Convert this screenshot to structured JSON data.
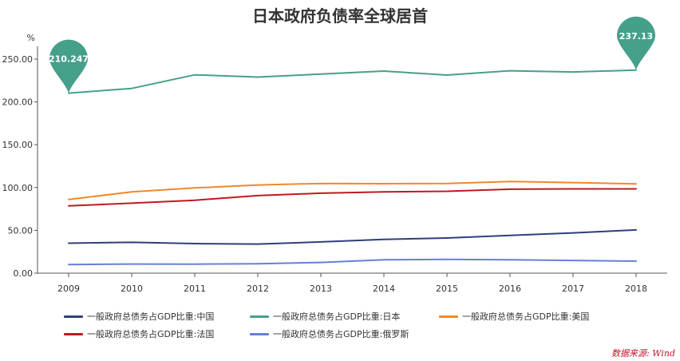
{
  "chart_data": {
    "type": "line",
    "title": "日本政府负债率全球居首",
    "y_unit": "%",
    "x": [
      "2009",
      "2010",
      "2011",
      "2012",
      "2013",
      "2014",
      "2015",
      "2016",
      "2017",
      "2018"
    ],
    "ylim": [
      0,
      250
    ],
    "yticks": [
      "0.00",
      "50.00",
      "100.00",
      "150.00",
      "200.00",
      "250.00"
    ],
    "grid": false,
    "legend_position": "bottom",
    "series": [
      {
        "name": "一般政府总债务占GDP比重:中国",
        "color": "#2f3f7a",
        "values": [
          35,
          36,
          34.5,
          34,
          36.5,
          39.5,
          41,
          44,
          47,
          50.5
        ]
      },
      {
        "name": "一般政府总债务占GDP比重:日本",
        "color": "#45a08a",
        "values": [
          210.247,
          215.8,
          231.6,
          229,
          232.5,
          236,
          231.3,
          236.4,
          235,
          237.13
        ]
      },
      {
        "name": "一般政府总债务占GDP比重:美国",
        "color": "#f0882d",
        "values": [
          86,
          95,
          99.5,
          103,
          104.8,
          104.5,
          104.8,
          107,
          105.8,
          104.3
        ]
      },
      {
        "name": "一般政府总债务占GDP比重:法国",
        "color": "#c0191f",
        "values": [
          78.5,
          81.7,
          85.2,
          90.6,
          93.4,
          94.9,
          95.6,
          98,
          98.4,
          98.4
        ]
      },
      {
        "name": "一般政府总债务占GDP比重:俄罗斯",
        "color": "#6680d8",
        "values": [
          10,
          10.6,
          10.5,
          11,
          12.5,
          15.6,
          16.1,
          15.6,
          14.8,
          14
        ]
      }
    ],
    "annotations": [
      {
        "series": "一般政府总债务占GDP比重:日本",
        "x": "2009",
        "label": "210.247",
        "marker": "pin",
        "color": "#45a08a"
      },
      {
        "series": "一般政府总债务占GDP比重:日本",
        "x": "2018",
        "label": "237.13",
        "marker": "pin",
        "color": "#45a08a"
      }
    ]
  },
  "source_note": "数据来源: Wind"
}
